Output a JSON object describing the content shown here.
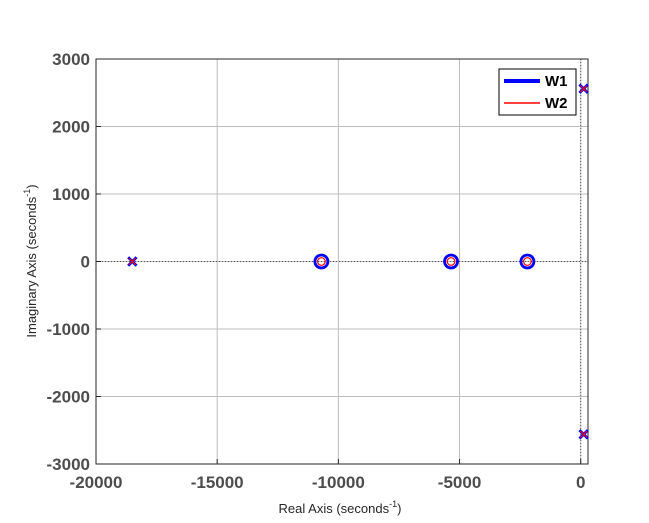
{
  "chart_data": {
    "type": "scatter",
    "title": "",
    "xlabel": {
      "text": "Real Axis (seconds",
      "sup": "-1",
      "suffix": ")"
    },
    "ylabel": {
      "text": "Imaginary Axis (seconds",
      "sup": "-1",
      "suffix": ")"
    },
    "xlim": [
      -20000,
      300
    ],
    "ylim": [
      -3000,
      3000
    ],
    "xticks": [
      -20000,
      -15000,
      -10000,
      -5000,
      0
    ],
    "yticks": [
      -3000,
      -2000,
      -1000,
      0,
      1000,
      2000,
      3000
    ],
    "xtick_labels": [
      "-20000",
      "-15000",
      "-10000",
      "-5000",
      "0"
    ],
    "ytick_labels": [
      "-3000",
      "-2000",
      "-1000",
      "0",
      "1000",
      "2000",
      "3000"
    ],
    "grid": true,
    "legend_position": "top-right",
    "series": [
      {
        "name": "W1",
        "color": "#0000ff",
        "poles": [
          {
            "x": -18500,
            "y": 0
          },
          {
            "x": 120,
            "y": 2560
          },
          {
            "x": 120,
            "y": -2560
          }
        ],
        "zeros": [
          {
            "x": -10700,
            "y": 0
          },
          {
            "x": -5350,
            "y": 0
          },
          {
            "x": -2200,
            "y": 0
          }
        ]
      },
      {
        "name": "W2",
        "color": "#ff0000",
        "poles": [
          {
            "x": -18500,
            "y": 0
          },
          {
            "x": 120,
            "y": 2560
          },
          {
            "x": 120,
            "y": -2560
          }
        ],
        "zeros": [
          {
            "x": -10700,
            "y": 0
          },
          {
            "x": -5350,
            "y": 0
          },
          {
            "x": -2200,
            "y": 0
          }
        ]
      }
    ]
  }
}
